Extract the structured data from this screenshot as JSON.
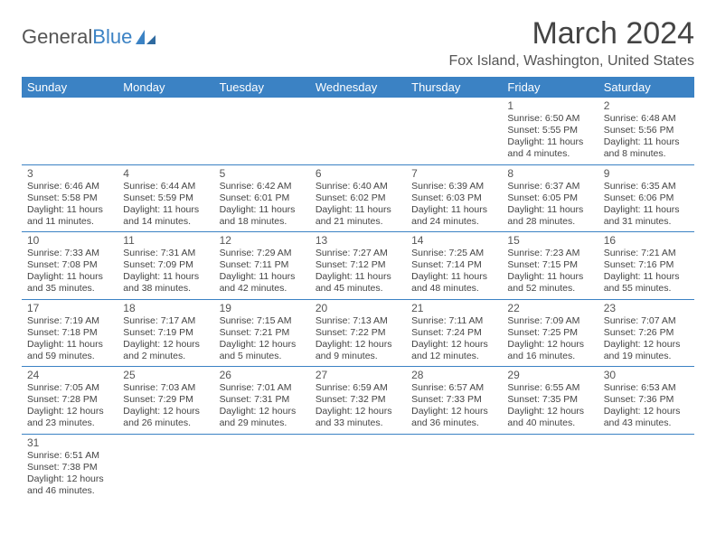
{
  "logo": {
    "text1": "General",
    "text2": "Blue"
  },
  "title": "March 2024",
  "location": "Fox Island, Washington, United States",
  "colors": {
    "header_bg": "#3b82c4",
    "border": "#3b82c4",
    "text": "#444444"
  },
  "dayHeaders": [
    "Sunday",
    "Monday",
    "Tuesday",
    "Wednesday",
    "Thursday",
    "Friday",
    "Saturday"
  ],
  "weeks": [
    [
      null,
      null,
      null,
      null,
      null,
      {
        "n": "1",
        "sr": "Sunrise: 6:50 AM",
        "ss": "Sunset: 5:55 PM",
        "dl": "Daylight: 11 hours and 4 minutes."
      },
      {
        "n": "2",
        "sr": "Sunrise: 6:48 AM",
        "ss": "Sunset: 5:56 PM",
        "dl": "Daylight: 11 hours and 8 minutes."
      }
    ],
    [
      {
        "n": "3",
        "sr": "Sunrise: 6:46 AM",
        "ss": "Sunset: 5:58 PM",
        "dl": "Daylight: 11 hours and 11 minutes."
      },
      {
        "n": "4",
        "sr": "Sunrise: 6:44 AM",
        "ss": "Sunset: 5:59 PM",
        "dl": "Daylight: 11 hours and 14 minutes."
      },
      {
        "n": "5",
        "sr": "Sunrise: 6:42 AM",
        "ss": "Sunset: 6:01 PM",
        "dl": "Daylight: 11 hours and 18 minutes."
      },
      {
        "n": "6",
        "sr": "Sunrise: 6:40 AM",
        "ss": "Sunset: 6:02 PM",
        "dl": "Daylight: 11 hours and 21 minutes."
      },
      {
        "n": "7",
        "sr": "Sunrise: 6:39 AM",
        "ss": "Sunset: 6:03 PM",
        "dl": "Daylight: 11 hours and 24 minutes."
      },
      {
        "n": "8",
        "sr": "Sunrise: 6:37 AM",
        "ss": "Sunset: 6:05 PM",
        "dl": "Daylight: 11 hours and 28 minutes."
      },
      {
        "n": "9",
        "sr": "Sunrise: 6:35 AM",
        "ss": "Sunset: 6:06 PM",
        "dl": "Daylight: 11 hours and 31 minutes."
      }
    ],
    [
      {
        "n": "10",
        "sr": "Sunrise: 7:33 AM",
        "ss": "Sunset: 7:08 PM",
        "dl": "Daylight: 11 hours and 35 minutes."
      },
      {
        "n": "11",
        "sr": "Sunrise: 7:31 AM",
        "ss": "Sunset: 7:09 PM",
        "dl": "Daylight: 11 hours and 38 minutes."
      },
      {
        "n": "12",
        "sr": "Sunrise: 7:29 AM",
        "ss": "Sunset: 7:11 PM",
        "dl": "Daylight: 11 hours and 42 minutes."
      },
      {
        "n": "13",
        "sr": "Sunrise: 7:27 AM",
        "ss": "Sunset: 7:12 PM",
        "dl": "Daylight: 11 hours and 45 minutes."
      },
      {
        "n": "14",
        "sr": "Sunrise: 7:25 AM",
        "ss": "Sunset: 7:14 PM",
        "dl": "Daylight: 11 hours and 48 minutes."
      },
      {
        "n": "15",
        "sr": "Sunrise: 7:23 AM",
        "ss": "Sunset: 7:15 PM",
        "dl": "Daylight: 11 hours and 52 minutes."
      },
      {
        "n": "16",
        "sr": "Sunrise: 7:21 AM",
        "ss": "Sunset: 7:16 PM",
        "dl": "Daylight: 11 hours and 55 minutes."
      }
    ],
    [
      {
        "n": "17",
        "sr": "Sunrise: 7:19 AM",
        "ss": "Sunset: 7:18 PM",
        "dl": "Daylight: 11 hours and 59 minutes."
      },
      {
        "n": "18",
        "sr": "Sunrise: 7:17 AM",
        "ss": "Sunset: 7:19 PM",
        "dl": "Daylight: 12 hours and 2 minutes."
      },
      {
        "n": "19",
        "sr": "Sunrise: 7:15 AM",
        "ss": "Sunset: 7:21 PM",
        "dl": "Daylight: 12 hours and 5 minutes."
      },
      {
        "n": "20",
        "sr": "Sunrise: 7:13 AM",
        "ss": "Sunset: 7:22 PM",
        "dl": "Daylight: 12 hours and 9 minutes."
      },
      {
        "n": "21",
        "sr": "Sunrise: 7:11 AM",
        "ss": "Sunset: 7:24 PM",
        "dl": "Daylight: 12 hours and 12 minutes."
      },
      {
        "n": "22",
        "sr": "Sunrise: 7:09 AM",
        "ss": "Sunset: 7:25 PM",
        "dl": "Daylight: 12 hours and 16 minutes."
      },
      {
        "n": "23",
        "sr": "Sunrise: 7:07 AM",
        "ss": "Sunset: 7:26 PM",
        "dl": "Daylight: 12 hours and 19 minutes."
      }
    ],
    [
      {
        "n": "24",
        "sr": "Sunrise: 7:05 AM",
        "ss": "Sunset: 7:28 PM",
        "dl": "Daylight: 12 hours and 23 minutes."
      },
      {
        "n": "25",
        "sr": "Sunrise: 7:03 AM",
        "ss": "Sunset: 7:29 PM",
        "dl": "Daylight: 12 hours and 26 minutes."
      },
      {
        "n": "26",
        "sr": "Sunrise: 7:01 AM",
        "ss": "Sunset: 7:31 PM",
        "dl": "Daylight: 12 hours and 29 minutes."
      },
      {
        "n": "27",
        "sr": "Sunrise: 6:59 AM",
        "ss": "Sunset: 7:32 PM",
        "dl": "Daylight: 12 hours and 33 minutes."
      },
      {
        "n": "28",
        "sr": "Sunrise: 6:57 AM",
        "ss": "Sunset: 7:33 PM",
        "dl": "Daylight: 12 hours and 36 minutes."
      },
      {
        "n": "29",
        "sr": "Sunrise: 6:55 AM",
        "ss": "Sunset: 7:35 PM",
        "dl": "Daylight: 12 hours and 40 minutes."
      },
      {
        "n": "30",
        "sr": "Sunrise: 6:53 AM",
        "ss": "Sunset: 7:36 PM",
        "dl": "Daylight: 12 hours and 43 minutes."
      }
    ],
    [
      {
        "n": "31",
        "sr": "Sunrise: 6:51 AM",
        "ss": "Sunset: 7:38 PM",
        "dl": "Daylight: 12 hours and 46 minutes."
      },
      null,
      null,
      null,
      null,
      null,
      null
    ]
  ]
}
